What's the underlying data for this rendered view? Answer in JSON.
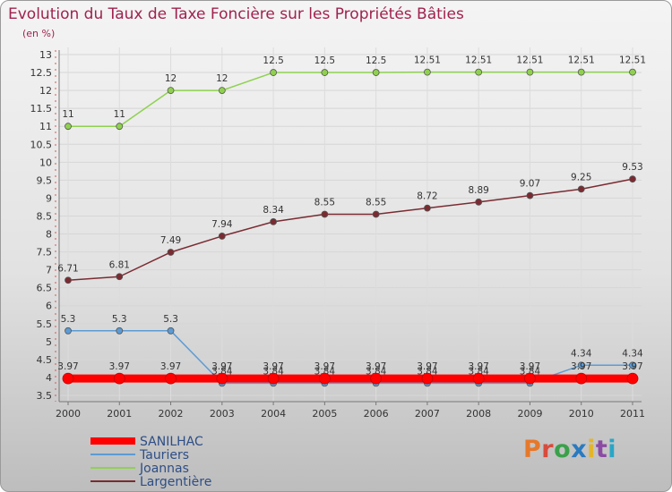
{
  "title": "Evolution du Taux de Taxe Foncière sur les Propriétés Bâties",
  "subtitle": "(en %)",
  "logo": {
    "text": "Proxiti",
    "colors": [
      "#e6782a",
      "#d94b3b",
      "#3aa14a",
      "#2a7ac0",
      "#e3b52b",
      "#8b4ba3",
      "#2aa6c7"
    ]
  },
  "chart_data": {
    "type": "line",
    "title": "Evolution du Taux de Taxe Foncière sur les Propriétés Bâties",
    "ylabel": "(en %)",
    "xlabel": "",
    "categories": [
      "2000",
      "2001",
      "2002",
      "2003",
      "2004",
      "2005",
      "2006",
      "2007",
      "2008",
      "2009",
      "2010",
      "2011"
    ],
    "ylim": [
      3.5,
      13
    ],
    "yticks": [
      "3.5",
      "4",
      "4.5",
      "5",
      "5.5",
      "6",
      "6.5",
      "7",
      "7.5",
      "8",
      "8.5",
      "9",
      "9.5",
      "10",
      "10.5",
      "11",
      "11.5",
      "12",
      "12.5",
      "13"
    ],
    "legend_position": "bottom-left",
    "series": [
      {
        "name": "SANILHAC",
        "color": "#ff0000",
        "values": [
          3.97,
          3.97,
          3.97,
          3.97,
          3.97,
          3.97,
          3.97,
          3.97,
          3.97,
          3.97,
          3.97,
          3.97
        ],
        "labels": [
          "3.97",
          "3.97",
          "3.97",
          "3.97",
          "3.97",
          "3.97",
          "3.97",
          "3.97",
          "3.97",
          "3.97",
          "3.97",
          "3.97"
        ]
      },
      {
        "name": "Tauriers",
        "color": "#5b9bd5",
        "values": [
          5.3,
          5.3,
          5.3,
          3.84,
          3.84,
          3.84,
          3.84,
          3.84,
          3.84,
          3.84,
          4.34,
          4.34
        ],
        "labels": [
          "5.3",
          "5.3",
          "5.3",
          "3.84",
          "3.84",
          "3.84",
          "3.84",
          "3.84",
          "3.84",
          "3.84",
          "4.34",
          "4.34"
        ]
      },
      {
        "name": "Joannas",
        "color": "#8fd14f",
        "values": [
          11,
          11,
          12,
          12,
          12.5,
          12.5,
          12.5,
          12.51,
          12.51,
          12.51,
          12.51,
          12.51
        ],
        "labels": [
          "11",
          "11",
          "12",
          "12",
          "12.5",
          "12.5",
          "12.5",
          "12.51",
          "12.51",
          "12.51",
          "12.51",
          "12.51"
        ]
      },
      {
        "name": "Largentière",
        "color": "#7a2b32",
        "values": [
          6.71,
          6.81,
          7.49,
          7.94,
          8.34,
          8.55,
          8.55,
          8.72,
          8.89,
          9.07,
          9.25,
          9.53
        ],
        "labels": [
          "6.71",
          "6.81",
          "7.49",
          "7.94",
          "8.34",
          "8.55",
          "8.55",
          "8.72",
          "8.89",
          "9.07",
          "9.25",
          "9.53"
        ]
      }
    ]
  }
}
